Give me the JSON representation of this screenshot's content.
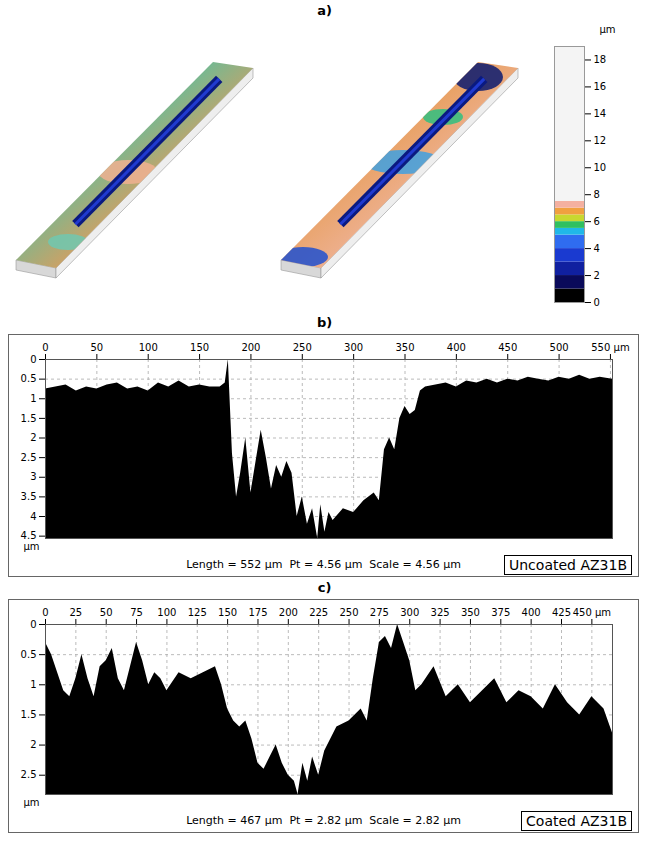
{
  "chart_data": [
    {
      "type": "colorbar",
      "title": "a)",
      "label": "µm",
      "ylim": [
        0,
        19
      ],
      "yticks": [
        0,
        2,
        4,
        6,
        8,
        10,
        12,
        14,
        16,
        18
      ],
      "stops": [
        0,
        1,
        2,
        3,
        4,
        5,
        5.5,
        6,
        6.5,
        7,
        7.5,
        19
      ],
      "colors": [
        "#000000",
        "#0a0a5a",
        "#1020a0",
        "#1a3ad0",
        "#2f6cf0",
        "#20b8e8",
        "#30c060",
        "#c8d830",
        "#f0a040",
        "#f4b0a0",
        "#f4f4f4"
      ]
    },
    {
      "type": "area",
      "title": "b)",
      "x": [
        0,
        10,
        20,
        30,
        40,
        50,
        60,
        70,
        80,
        90,
        100,
        110,
        120,
        130,
        140,
        150,
        160,
        170,
        175,
        178,
        182,
        186,
        190,
        195,
        200,
        205,
        210,
        215,
        220,
        225,
        230,
        235,
        240,
        245,
        250,
        255,
        260,
        265,
        268,
        272,
        276,
        280,
        290,
        300,
        310,
        320,
        325,
        330,
        335,
        340,
        345,
        350,
        355,
        360,
        365,
        370,
        380,
        390,
        400,
        410,
        420,
        430,
        440,
        450,
        460,
        470,
        480,
        490,
        500,
        510,
        520,
        530,
        540,
        552
      ],
      "series": [
        {
          "name": "Uncoated AZ31B",
          "color": "#000000",
          "values": [
            0.75,
            0.7,
            0.65,
            0.8,
            0.7,
            0.75,
            0.65,
            0.6,
            0.75,
            0.7,
            0.8,
            0.6,
            0.7,
            0.55,
            0.7,
            0.65,
            0.7,
            0.7,
            0.6,
            0.0,
            2.4,
            3.5,
            2.9,
            2.0,
            3.4,
            2.6,
            1.8,
            2.5,
            3.3,
            2.7,
            3.0,
            2.6,
            2.9,
            4.0,
            3.5,
            4.2,
            3.8,
            4.56,
            3.7,
            4.4,
            3.9,
            4.1,
            3.8,
            3.9,
            3.6,
            3.4,
            3.6,
            2.3,
            2.0,
            2.3,
            1.5,
            1.2,
            1.4,
            1.3,
            0.8,
            0.7,
            0.65,
            0.6,
            0.7,
            0.55,
            0.6,
            0.5,
            0.6,
            0.5,
            0.55,
            0.45,
            0.5,
            0.55,
            0.45,
            0.5,
            0.4,
            0.5,
            0.45,
            0.5
          ]
        }
      ],
      "xlim": [
        0,
        552
      ],
      "xticks": [
        0,
        50,
        100,
        150,
        200,
        250,
        300,
        350,
        400,
        450,
        500,
        {
          "value": 550,
          "label": "550 µm"
        }
      ],
      "ylim": [
        4.56,
        0
      ],
      "yticks": [
        0,
        0.5,
        1,
        1.5,
        2,
        2.5,
        3,
        3.5,
        4,
        4.5
      ],
      "y_label": "µm",
      "caption": "Length = 552 µm  Pt = 4.56 µm  Scale = 4.56 µm",
      "grid": true,
      "legend": "bottom-right"
    },
    {
      "type": "area",
      "title": "c)",
      "x": [
        0,
        5,
        10,
        15,
        20,
        25,
        30,
        35,
        40,
        45,
        50,
        55,
        60,
        65,
        70,
        75,
        80,
        85,
        90,
        95,
        100,
        110,
        120,
        130,
        140,
        145,
        150,
        155,
        160,
        165,
        170,
        175,
        180,
        185,
        190,
        195,
        200,
        205,
        208,
        212,
        216,
        220,
        225,
        230,
        240,
        250,
        260,
        265,
        270,
        275,
        280,
        285,
        290,
        295,
        300,
        305,
        310,
        320,
        330,
        340,
        350,
        360,
        370,
        380,
        390,
        400,
        410,
        420,
        430,
        440,
        450,
        460,
        467
      ],
      "series": [
        {
          "name": "Coated AZ31B",
          "color": "#000000",
          "values": [
            0.3,
            0.5,
            0.8,
            1.1,
            1.2,
            0.9,
            0.5,
            0.9,
            1.2,
            0.7,
            0.6,
            0.4,
            0.9,
            1.1,
            0.7,
            0.3,
            0.6,
            1.0,
            0.8,
            0.9,
            1.1,
            0.8,
            0.9,
            0.8,
            0.7,
            1.0,
            1.4,
            1.6,
            1.7,
            1.6,
            1.9,
            2.3,
            2.4,
            2.2,
            2.0,
            2.3,
            2.5,
            2.6,
            2.82,
            2.3,
            2.6,
            2.2,
            2.5,
            2.1,
            1.7,
            1.6,
            1.4,
            1.6,
            0.9,
            0.3,
            0.2,
            0.4,
            0.0,
            0.3,
            0.6,
            1.1,
            1.0,
            0.7,
            1.2,
            1.0,
            1.3,
            1.1,
            0.9,
            1.3,
            1.1,
            1.2,
            1.4,
            1.0,
            1.3,
            1.5,
            1.2,
            1.4,
            1.8
          ]
        }
      ],
      "xlim": [
        0,
        467
      ],
      "xticks": [
        0,
        25,
        50,
        75,
        100,
        125,
        150,
        175,
        200,
        225,
        250,
        275,
        300,
        325,
        350,
        375,
        400,
        425,
        {
          "value": 450,
          "label": "450 µm"
        }
      ],
      "ylim": [
        2.82,
        0
      ],
      "yticks": [
        0,
        0.5,
        1,
        1.5,
        2,
        2.5
      ],
      "y_label": "µm",
      "caption": "Length = 467 µm  Pt = 2.82 µm  Scale = 2.82 µm",
      "grid": true,
      "legend": "bottom-right"
    }
  ]
}
